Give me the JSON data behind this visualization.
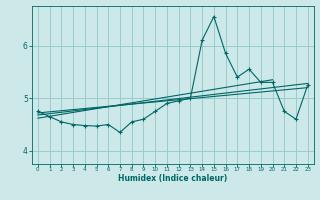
{
  "xlabel": "Humidex (Indice chaleur)",
  "background_color": "#cce8e8",
  "grid_color": "#99cccc",
  "line_color": "#006666",
  "xlim": [
    -0.5,
    23.5
  ],
  "ylim": [
    3.75,
    6.75
  ],
  "yticks": [
    4,
    5,
    6
  ],
  "xticks": [
    0,
    1,
    2,
    3,
    4,
    5,
    6,
    7,
    8,
    9,
    10,
    11,
    12,
    13,
    14,
    15,
    16,
    17,
    18,
    19,
    20,
    21,
    22,
    23
  ],
  "main_series_x": [
    0,
    1,
    2,
    3,
    4,
    5,
    6,
    7,
    8,
    9,
    10,
    11,
    12,
    13,
    14,
    15,
    16,
    17,
    18,
    19,
    20,
    21,
    22,
    23
  ],
  "main_series_y": [
    4.75,
    4.65,
    4.55,
    4.5,
    4.48,
    4.47,
    4.5,
    4.35,
    4.55,
    4.6,
    4.75,
    4.9,
    4.95,
    5.0,
    6.1,
    6.55,
    5.85,
    5.4,
    5.55,
    5.3,
    5.3,
    4.75,
    4.6,
    5.25
  ],
  "trend1_x": [
    0,
    23
  ],
  "trend1_y": [
    4.72,
    5.2
  ],
  "trend2_x": [
    0,
    23
  ],
  "trend2_y": [
    4.68,
    5.28
  ],
  "trend3_x": [
    0,
    20
  ],
  "trend3_y": [
    4.62,
    5.35
  ]
}
